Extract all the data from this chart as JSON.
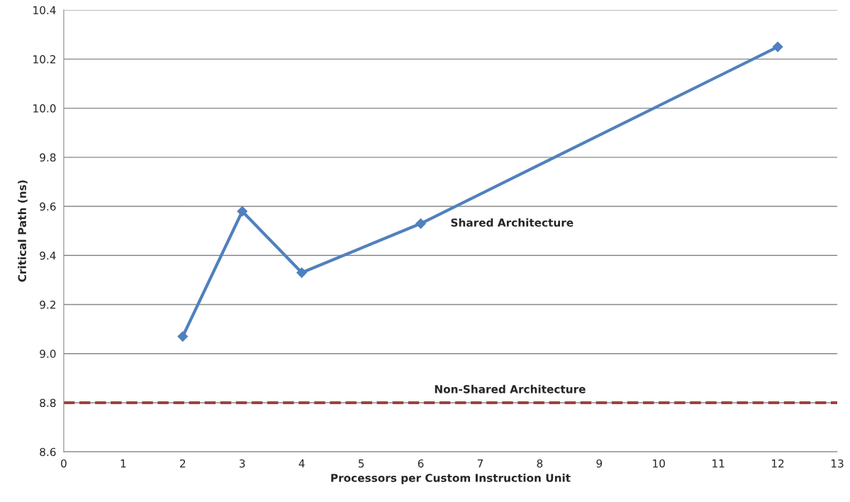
{
  "chart_data": {
    "type": "line",
    "xlabel": "Processors per Custom Instruction Unit",
    "ylabel": "Critical Path (ns)",
    "x": [
      2,
      3,
      4,
      6,
      12
    ],
    "series": [
      {
        "name": "Shared Architecture",
        "color": "#4f81bd",
        "values": [
          9.07,
          9.58,
          9.33,
          9.53,
          10.25
        ]
      }
    ],
    "xlim": [
      0,
      13
    ],
    "xticks": [
      0,
      1,
      2,
      3,
      4,
      5,
      6,
      7,
      8,
      9,
      10,
      11,
      12,
      13
    ],
    "ylim": [
      8.6,
      10.4
    ],
    "yticks": [
      {
        "value": 8.6,
        "label": "8.6"
      },
      {
        "value": 8.8,
        "label": "8.8"
      },
      {
        "value": 9.0,
        "label": "9.0"
      },
      {
        "value": 9.2,
        "label": "9.2"
      },
      {
        "value": 9.4,
        "label": "9.4"
      },
      {
        "value": 9.6,
        "label": "9.6"
      },
      {
        "value": 9.8,
        "label": "9.8"
      },
      {
        "value": 10.0,
        "label": "10.0"
      },
      {
        "value": 10.2,
        "label": "10.2"
      },
      {
        "value": 10.4,
        "label": "10.4"
      }
    ],
    "ref_lines": [
      {
        "axis": "y",
        "value": 8.8,
        "label": "Non-Shared Architecture",
        "color": "#a0413e",
        "line_style": "dashed"
      }
    ],
    "grid": "y",
    "marker": "diamond",
    "line_style": "solid"
  }
}
